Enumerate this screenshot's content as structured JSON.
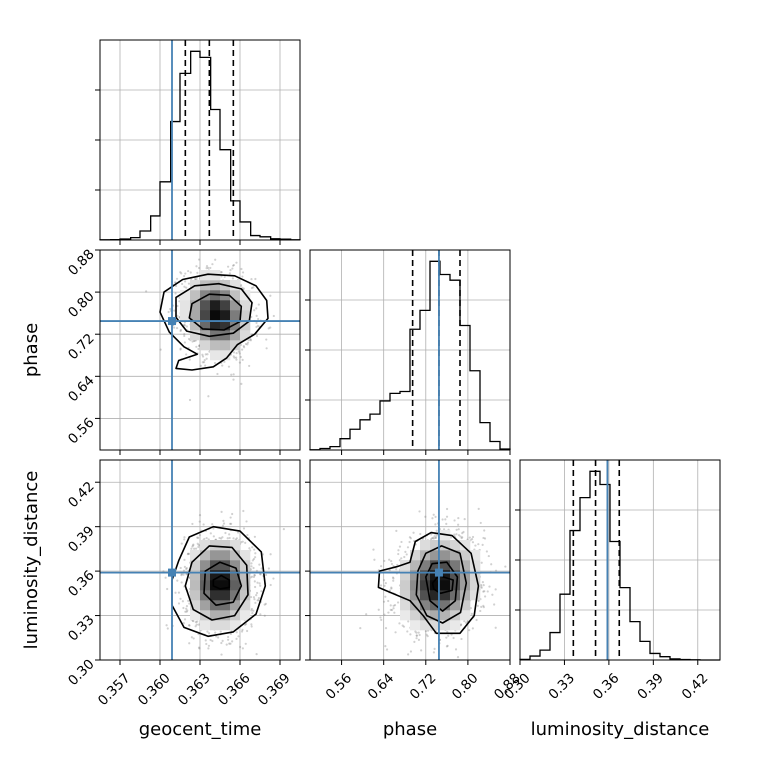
{
  "chart_data": {
    "type": "corner",
    "parameters": [
      "geocent_time",
      "phase",
      "luminosity_distance"
    ],
    "axis_labels": {
      "x": [
        "geocent_time",
        "phase",
        "luminosity_distance"
      ],
      "y": [
        "",
        "phase",
        "luminosity_distance"
      ]
    },
    "ranges": {
      "geocent_time": [
        0.3555,
        0.3705
      ],
      "phase": [
        0.5,
        0.88
      ],
      "luminosity_distance": [
        0.3,
        0.435
      ]
    },
    "ticks": {
      "geocent_time": [
        "0.357",
        "0.360",
        "0.363",
        "0.366",
        "0.369"
      ],
      "phase": [
        "0.56",
        "0.64",
        "0.72",
        "0.80",
        "0.88"
      ],
      "luminosity_distance": [
        "0.30",
        "0.33",
        "0.36",
        "0.39",
        "0.42"
      ]
    },
    "truths": {
      "geocent_time": 0.3609,
      "phase": 0.745,
      "luminosity_distance": 0.359
    },
    "quantiles": {
      "geocent_time": [
        0.3619,
        0.3637,
        0.3655
      ],
      "phase": [
        0.695,
        0.745,
        0.785
      ],
      "luminosity_distance": [
        0.336,
        0.351,
        0.367
      ]
    },
    "histograms": {
      "geocent_time": {
        "edges": [
          0.3555,
          0.3563,
          0.357,
          0.3578,
          0.3585,
          0.3593,
          0.36,
          0.3608,
          0.3615,
          0.3623,
          0.363,
          0.3638,
          0.3645,
          0.3653,
          0.366,
          0.3668,
          0.3675,
          0.3683,
          0.369,
          0.3698,
          0.3705
        ],
        "counts": [
          1,
          2,
          5,
          12,
          45,
          120,
          290,
          590,
          830,
          940,
          910,
          650,
          450,
          195,
          90,
          22,
          16,
          6,
          4,
          1
        ]
      },
      "phase": {
        "edges": [
          0.5,
          0.519,
          0.538,
          0.557,
          0.576,
          0.595,
          0.614,
          0.633,
          0.652,
          0.671,
          0.69,
          0.709,
          0.728,
          0.747,
          0.766,
          0.785,
          0.804,
          0.823,
          0.842,
          0.861,
          0.88
        ],
        "counts": [
          1,
          8,
          18,
          60,
          110,
          160,
          190,
          260,
          300,
          310,
          640,
          740,
          1000,
          930,
          900,
          660,
          420,
          145,
          45,
          5
        ]
      },
      "luminosity_distance": {
        "edges": [
          0.3,
          0.30675,
          0.3135,
          0.32025,
          0.327,
          0.33375,
          0.3405,
          0.34725,
          0.354,
          0.36075,
          0.3675,
          0.37425,
          0.381,
          0.38775,
          0.3945,
          0.40125,
          0.408,
          0.41475,
          0.4215,
          0.42825,
          0.435
        ],
        "counts": [
          3,
          18,
          45,
          125,
          300,
          590,
          740,
          860,
          800,
          540,
          330,
          175,
          85,
          30,
          15,
          5,
          2,
          1,
          0,
          0
        ]
      }
    },
    "joint_distributions": [
      {
        "x": "geocent_time",
        "y": "phase",
        "peak": [
          0.3643,
          0.757
        ],
        "levels": [
          0.118,
          0.393,
          0.675,
          0.865
        ],
        "contours": [
          [
            [
              0.3603,
              0.8
            ],
            [
              0.3617,
              0.824
            ],
            [
              0.3636,
              0.834
            ],
            [
              0.3656,
              0.831
            ],
            [
              0.3672,
              0.812
            ],
            [
              0.368,
              0.784
            ],
            [
              0.3681,
              0.75
            ],
            [
              0.3671,
              0.72
            ],
            [
              0.3658,
              0.7
            ],
            [
              0.365,
              0.675
            ],
            [
              0.364,
              0.658
            ],
            [
              0.3624,
              0.652
            ],
            [
              0.3612,
              0.655
            ],
            [
              0.3614,
              0.67
            ],
            [
              0.3628,
              0.682
            ],
            [
              0.3618,
              0.696
            ],
            [
              0.3607,
              0.724
            ],
            [
              0.36,
              0.762
            ]
          ],
          [
            [
              0.3612,
              0.79
            ],
            [
              0.3626,
              0.812
            ],
            [
              0.3644,
              0.816
            ],
            [
              0.3661,
              0.806
            ],
            [
              0.3669,
              0.78
            ],
            [
              0.3667,
              0.745
            ],
            [
              0.3655,
              0.722
            ],
            [
              0.3637,
              0.716
            ],
            [
              0.362,
              0.726
            ],
            [
              0.3612,
              0.752
            ]
          ],
          [
            [
              0.3624,
              0.778
            ],
            [
              0.3637,
              0.796
            ],
            [
              0.3652,
              0.794
            ],
            [
              0.3661,
              0.773
            ],
            [
              0.366,
              0.744
            ],
            [
              0.3648,
              0.728
            ],
            [
              0.3632,
              0.73
            ],
            [
              0.3622,
              0.751
            ]
          ]
        ]
      },
      {
        "x": "geocent_time",
        "y": "luminosity_distance",
        "peak": [
          0.3645,
          0.352
        ],
        "levels": [
          0.118,
          0.393,
          0.675,
          0.865
        ],
        "contours": [
          [
            [
              0.3614,
              0.367
            ],
            [
              0.3622,
              0.383
            ],
            [
              0.364,
              0.39
            ],
            [
              0.366,
              0.387
            ],
            [
              0.3676,
              0.373
            ],
            [
              0.3679,
              0.35
            ],
            [
              0.3672,
              0.331
            ],
            [
              0.3655,
              0.319
            ],
            [
              0.3636,
              0.316
            ],
            [
              0.3618,
              0.322
            ],
            [
              0.3609,
              0.337
            ],
            [
              0.3609,
              0.354
            ]
          ],
          [
            [
              0.3624,
              0.366
            ],
            [
              0.3637,
              0.377
            ],
            [
              0.3654,
              0.376
            ],
            [
              0.3665,
              0.364
            ],
            [
              0.3666,
              0.344
            ],
            [
              0.3656,
              0.33
            ],
            [
              0.3639,
              0.327
            ],
            [
              0.3625,
              0.334
            ],
            [
              0.3619,
              0.35
            ]
          ],
          [
            [
              0.3634,
              0.36
            ],
            [
              0.3645,
              0.366
            ],
            [
              0.3657,
              0.362
            ],
            [
              0.3661,
              0.35
            ],
            [
              0.3655,
              0.339
            ],
            [
              0.3642,
              0.337
            ],
            [
              0.3633,
              0.345
            ]
          ],
          [
            [
              0.364,
              0.354
            ],
            [
              0.3646,
              0.357
            ],
            [
              0.3652,
              0.354
            ],
            [
              0.3652,
              0.349
            ],
            [
              0.3645,
              0.348
            ],
            [
              0.364,
              0.35
            ]
          ]
        ]
      },
      {
        "x": "phase",
        "y": "luminosity_distance",
        "peak": [
          0.745,
          0.352
        ],
        "levels": [
          0.118,
          0.393,
          0.675,
          0.865
        ],
        "contours": [
          [
            [
              0.69,
              0.366
            ],
            [
              0.7,
              0.38
            ],
            [
              0.73,
              0.386
            ],
            [
              0.77,
              0.384
            ],
            [
              0.806,
              0.372
            ],
            [
              0.82,
              0.35
            ],
            [
              0.812,
              0.33
            ],
            [
              0.785,
              0.318
            ],
            [
              0.74,
              0.318
            ],
            [
              0.715,
              0.33
            ],
            [
              0.69,
              0.34
            ],
            [
              0.63,
              0.349
            ],
            [
              0.632,
              0.36
            ],
            [
              0.665,
              0.363
            ]
          ],
          [
            [
              0.705,
              0.36
            ],
            [
              0.72,
              0.372
            ],
            [
              0.75,
              0.377
            ],
            [
              0.785,
              0.372
            ],
            [
              0.797,
              0.352
            ],
            [
              0.786,
              0.332
            ],
            [
              0.752,
              0.325
            ],
            [
              0.722,
              0.33
            ],
            [
              0.702,
              0.344
            ]
          ],
          [
            [
              0.72,
              0.356
            ],
            [
              0.732,
              0.365
            ],
            [
              0.76,
              0.366
            ],
            [
              0.78,
              0.356
            ],
            [
              0.776,
              0.34
            ],
            [
              0.752,
              0.333
            ],
            [
              0.728,
              0.34
            ]
          ],
          [
            [
              0.733,
              0.352
            ],
            [
              0.745,
              0.357
            ],
            [
              0.772,
              0.354
            ],
            [
              0.77,
              0.347
            ],
            [
              0.748,
              0.345
            ],
            [
              0.735,
              0.348
            ]
          ]
        ]
      }
    ]
  }
}
